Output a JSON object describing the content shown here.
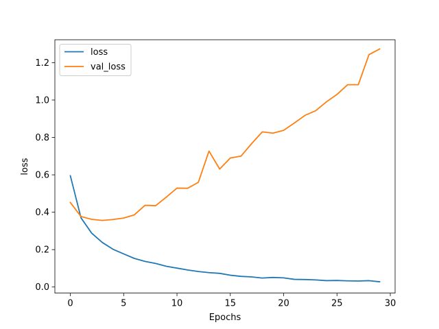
{
  "chart_data": {
    "type": "line",
    "title": "",
    "xlabel": "Epochs",
    "ylabel": "loss",
    "xlim": [
      -1.45,
      30.45
    ],
    "ylim": [
      -0.0325,
      1.3225
    ],
    "xticks": [
      0,
      5,
      10,
      15,
      20,
      25,
      30
    ],
    "xtick_labels": [
      "0",
      "5",
      "10",
      "15",
      "20",
      "25",
      "30"
    ],
    "yticks": [
      0.0,
      0.2,
      0.4,
      0.6,
      0.8,
      1.0,
      1.2
    ],
    "ytick_labels": [
      "0.0",
      "0.2",
      "0.4",
      "0.6",
      "0.8",
      "1.0",
      "1.2"
    ],
    "grid": false,
    "legend_position": "upper-left",
    "x": [
      0,
      1,
      2,
      3,
      4,
      5,
      6,
      7,
      8,
      9,
      10,
      11,
      12,
      13,
      14,
      15,
      16,
      17,
      18,
      19,
      20,
      21,
      22,
      23,
      24,
      25,
      26,
      27,
      28,
      29
    ],
    "series": [
      {
        "name": "loss",
        "color": "#1f77b4",
        "values": [
          0.595,
          0.37,
          0.288,
          0.238,
          0.202,
          0.177,
          0.153,
          0.137,
          0.126,
          0.111,
          0.101,
          0.091,
          0.083,
          0.077,
          0.073,
          0.063,
          0.057,
          0.054,
          0.048,
          0.051,
          0.049,
          0.041,
          0.04,
          0.038,
          0.034,
          0.035,
          0.033,
          0.032,
          0.034,
          0.028
        ]
      },
      {
        "name": "val_loss",
        "color": "#ff7f0e",
        "values": [
          0.452,
          0.377,
          0.362,
          0.356,
          0.361,
          0.369,
          0.386,
          0.437,
          0.435,
          0.481,
          0.529,
          0.528,
          0.56,
          0.727,
          0.631,
          0.69,
          0.7,
          0.767,
          0.83,
          0.823,
          0.838,
          0.877,
          0.918,
          0.943,
          0.99,
          1.03,
          1.082,
          1.082,
          1.243,
          1.273
        ]
      }
    ]
  }
}
